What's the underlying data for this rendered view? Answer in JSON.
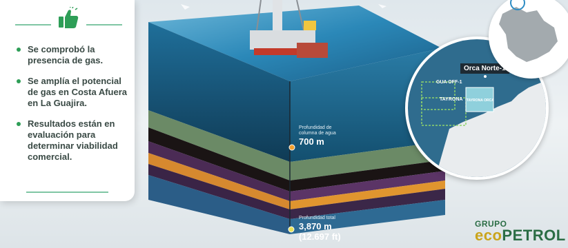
{
  "card": {
    "icon": "thumbs-up-icon",
    "bullets": [
      "Se comprobó la presencia de gas.",
      "Se amplía el potencial de gas en Costa Afuera en La Guajira.",
      "Resultados están en evaluación para determinar viabilidad comercial."
    ]
  },
  "cube": {
    "water_label": "Profundidad de columna de agua",
    "water_value": "700 m",
    "total_label": "Profundidad total",
    "total_value": "3,870 m",
    "total_value_ft": "(12.697 ft)"
  },
  "map": {
    "well_name": "Orca Norte-1",
    "block_1": "GUA OFF-1",
    "block_2": "TAYRONA",
    "block_3": "TAYRONA ORCA"
  },
  "brand": {
    "group": "GRUPO",
    "name_a": "eco",
    "name_b": "PETROL"
  },
  "colors": {
    "green": "#2e9e57",
    "sea": "#1f6f9a",
    "brand_gold": "#caa41b",
    "brand_green": "#2b6d45"
  }
}
